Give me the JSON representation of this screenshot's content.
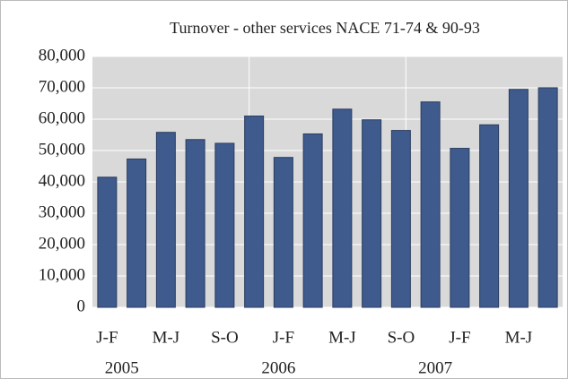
{
  "chart_data": {
    "type": "bar",
    "title": "Turnover - other services NACE 71-74 & 90-93",
    "categories": [
      "J-F",
      null,
      "M-J",
      null,
      "S-O",
      null,
      "J-F",
      null,
      "M-J",
      null,
      "S-O",
      null,
      "J-F",
      null,
      "M-J",
      null
    ],
    "groups": [
      "2005",
      "2006",
      "2007"
    ],
    "values": [
      41500,
      47300,
      55800,
      53500,
      52300,
      61000,
      47800,
      55300,
      63200,
      59800,
      56400,
      65500,
      50700,
      58200,
      69500,
      70000
    ],
    "color": "#3f5a8c",
    "ylim": [
      0,
      80000
    ],
    "yticks": [
      0,
      {
        "value": 10000,
        "label": "10,000"
      },
      {
        "value": 20000,
        "label": "20,000"
      },
      {
        "value": 30000,
        "label": "30,000"
      },
      {
        "value": 40000,
        "label": "40,000"
      },
      {
        "value": 50000,
        "label": "50,000"
      },
      {
        "value": 60000,
        "label": "60,000"
      },
      {
        "value": 70000,
        "label": "70,000"
      },
      {
        "value": 80000,
        "label": "80,000"
      }
    ],
    "grid": true
  }
}
